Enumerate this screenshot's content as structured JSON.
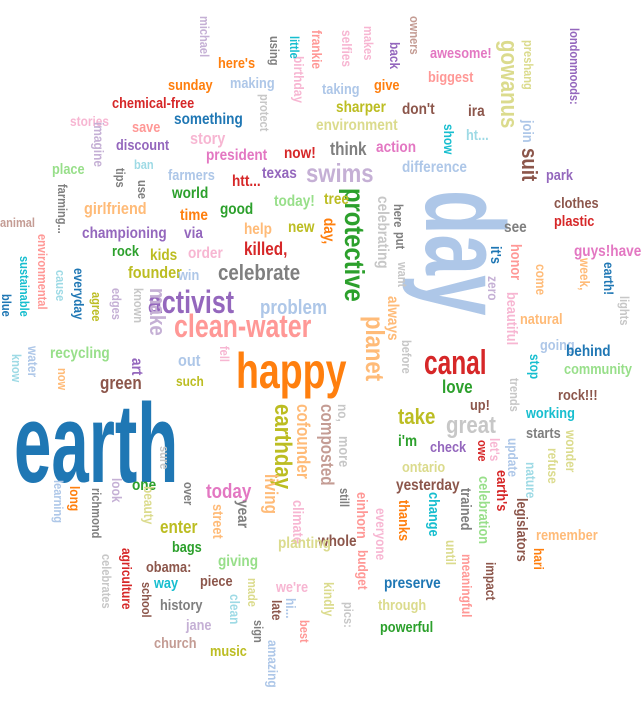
{
  "colors": {
    "blue": "#1f77b4",
    "light_blue": "#aec7e8",
    "orange": "#ff7f0e",
    "light_orange": "#ffbb78",
    "green": "#2ca02c",
    "light_green": "#98df8a",
    "red": "#d62728",
    "pink": "#ff9896",
    "purple": "#9467bd",
    "lavender": "#c5b0d5",
    "brown": "#8c564b",
    "tan": "#c49c94",
    "magenta": "#e377c2",
    "light_pink": "#f7b6d2",
    "gray": "#7f7f7f",
    "light_gray": "#c7c7c7",
    "olive": "#bcbd22",
    "khaki": "#dbdb8d",
    "teal": "#17becf",
    "light_teal": "#9edae5"
  },
  "words": [
    {
      "text": "earth",
      "color": "blue"
    },
    {
      "text": "day",
      "color": "light_blue"
    },
    {
      "text": "happy",
      "color": "orange"
    },
    {
      "text": "clean-water",
      "color": "pink"
    },
    {
      "text": "activist",
      "color": "purple"
    },
    {
      "text": "canal",
      "color": "red"
    },
    {
      "text": "protective",
      "color": "green"
    },
    {
      "text": "planet",
      "color": "light_orange"
    },
    {
      "text": "swims",
      "color": "lavender"
    },
    {
      "text": "gowanus",
      "color": "khaki"
    },
    {
      "text": "suit",
      "color": "brown"
    },
    {
      "text": "celebrate",
      "color": "gray"
    },
    {
      "text": "earthday",
      "color": "olive"
    },
    {
      "text": "great",
      "color": "light_gray"
    },
    {
      "text": "take",
      "color": "olive"
    },
    {
      "text": "make",
      "color": "lavender"
    },
    {
      "text": "problem",
      "color": "light_blue"
    },
    {
      "text": "today",
      "color": "magenta"
    },
    {
      "text": "green",
      "color": "brown"
    },
    {
      "text": "love",
      "color": "green"
    },
    {
      "text": "living",
      "color": "light_orange"
    },
    {
      "text": "cofounder",
      "color": "light_orange"
    },
    {
      "text": "composted",
      "color": "tan"
    },
    {
      "text": "always",
      "color": "light_orange"
    },
    {
      "text": "celebrating",
      "color": "light_gray"
    },
    {
      "text": "girlfriend",
      "color": "light_orange"
    },
    {
      "text": "championing",
      "color": "purple"
    },
    {
      "text": "via",
      "color": "purple"
    },
    {
      "text": "founder",
      "color": "olive"
    },
    {
      "text": "recycling",
      "color": "light_green"
    },
    {
      "text": "out",
      "color": "light_blue"
    },
    {
      "text": "art",
      "color": "purple"
    },
    {
      "text": "good",
      "color": "green"
    },
    {
      "text": "time",
      "color": "orange"
    },
    {
      "text": "kids",
      "color": "olive"
    },
    {
      "text": "rock",
      "color": "green"
    },
    {
      "text": "order",
      "color": "light_pink"
    },
    {
      "text": "win",
      "color": "light_blue"
    },
    {
      "text": "help",
      "color": "light_orange"
    },
    {
      "text": "killed,",
      "color": "red"
    },
    {
      "text": "new",
      "color": "olive"
    },
    {
      "text": "day,",
      "color": "orange"
    },
    {
      "text": "today!",
      "color": "light_green"
    },
    {
      "text": "tree",
      "color": "olive"
    },
    {
      "text": "world",
      "color": "green"
    },
    {
      "text": "farmers",
      "color": "light_blue"
    },
    {
      "text": "htt...",
      "color": "red"
    },
    {
      "text": "texas",
      "color": "purple"
    },
    {
      "text": "president",
      "color": "magenta"
    },
    {
      "text": "now!",
      "color": "red"
    },
    {
      "text": "think",
      "color": "gray"
    },
    {
      "text": "action",
      "color": "magenta"
    },
    {
      "text": "difference",
      "color": "light_blue"
    },
    {
      "text": "environment",
      "color": "khaki"
    },
    {
      "text": "sharper",
      "color": "olive"
    },
    {
      "text": "don't",
      "color": "brown"
    },
    {
      "text": "taking",
      "color": "light_blue"
    },
    {
      "text": "give",
      "color": "orange"
    },
    {
      "text": "biggest",
      "color": "pink"
    },
    {
      "text": "awesome!",
      "color": "magenta"
    },
    {
      "text": "here's",
      "color": "orange"
    },
    {
      "text": "making",
      "color": "light_blue"
    },
    {
      "text": "sunday",
      "color": "orange"
    },
    {
      "text": "chemical-free",
      "color": "red"
    },
    {
      "text": "something",
      "color": "blue"
    },
    {
      "text": "stories",
      "color": "light_pink"
    },
    {
      "text": "save",
      "color": "pink"
    },
    {
      "text": "discount",
      "color": "purple"
    },
    {
      "text": "story",
      "color": "light_pink"
    },
    {
      "text": "place",
      "color": "light_green"
    },
    {
      "text": "ban",
      "color": "light_teal"
    },
    {
      "text": "ira",
      "color": "brown"
    },
    {
      "text": "ht...",
      "color": "light_teal"
    },
    {
      "text": "show",
      "color": "teal"
    },
    {
      "text": "join",
      "color": "light_blue"
    },
    {
      "text": "park",
      "color": "purple"
    },
    {
      "text": "clothes",
      "color": "brown"
    },
    {
      "text": "plastic",
      "color": "red"
    },
    {
      "text": "see",
      "color": "gray"
    },
    {
      "text": "it's",
      "color": "blue"
    },
    {
      "text": "guys!have",
      "color": "magenta"
    },
    {
      "text": "earth!",
      "color": "blue"
    },
    {
      "text": "week,",
      "color": "light_orange"
    },
    {
      "text": "come",
      "color": "light_orange"
    },
    {
      "text": "natural",
      "color": "light_orange"
    },
    {
      "text": "beautiful",
      "color": "light_pink"
    },
    {
      "text": "honor",
      "color": "pink"
    },
    {
      "text": "zero",
      "color": "lavender"
    },
    {
      "text": "going",
      "color": "light_blue"
    },
    {
      "text": "behind",
      "color": "blue"
    },
    {
      "text": "community",
      "color": "light_green"
    },
    {
      "text": "stop",
      "color": "teal"
    },
    {
      "text": "rock!!!",
      "color": "brown"
    },
    {
      "text": "working",
      "color": "teal"
    },
    {
      "text": "starts",
      "color": "gray"
    },
    {
      "text": "up!",
      "color": "brown"
    },
    {
      "text": "i'm",
      "color": "green"
    },
    {
      "text": "check",
      "color": "purple"
    },
    {
      "text": "let's",
      "color": "light_pink"
    },
    {
      "text": "owe",
      "color": "red"
    },
    {
      "text": "update",
      "color": "light_blue"
    },
    {
      "text": "nature",
      "color": "light_teal"
    },
    {
      "text": "refuse",
      "color": "khaki"
    },
    {
      "text": "wonder",
      "color": "khaki"
    },
    {
      "text": "ontario",
      "color": "khaki"
    },
    {
      "text": "yesterday",
      "color": "brown"
    },
    {
      "text": "one",
      "color": "green"
    },
    {
      "text": "look",
      "color": "lavender"
    },
    {
      "text": "enter",
      "color": "olive"
    },
    {
      "text": "bags",
      "color": "green"
    },
    {
      "text": "beauty",
      "color": "khaki"
    },
    {
      "text": "street",
      "color": "light_orange"
    },
    {
      "text": "year",
      "color": "gray"
    },
    {
      "text": "climate",
      "color": "light_pink"
    },
    {
      "text": "whole",
      "color": "brown"
    },
    {
      "text": "thanks",
      "color": "orange"
    },
    {
      "text": "change",
      "color": "teal"
    },
    {
      "text": "trained",
      "color": "gray"
    },
    {
      "text": "celebration",
      "color": "light_green"
    },
    {
      "text": "earth's",
      "color": "red"
    },
    {
      "text": "legislators",
      "color": "brown"
    },
    {
      "text": "remember",
      "color": "light_orange"
    },
    {
      "text": "hari",
      "color": "orange"
    },
    {
      "text": "obama:",
      "color": "brown"
    },
    {
      "text": "giving",
      "color": "light_green"
    },
    {
      "text": "planting",
      "color": "khaki"
    },
    {
      "text": "preserve",
      "color": "blue"
    },
    {
      "text": "impact",
      "color": "brown"
    },
    {
      "text": "meaningful",
      "color": "pink"
    },
    {
      "text": "way",
      "color": "teal"
    },
    {
      "text": "piece",
      "color": "brown"
    },
    {
      "text": "we're",
      "color": "light_pink"
    },
    {
      "text": "history",
      "color": "gray"
    },
    {
      "text": "through",
      "color": "khaki"
    },
    {
      "text": "powerful",
      "color": "green"
    },
    {
      "text": "jane",
      "color": "lavender"
    },
    {
      "text": "church",
      "color": "tan"
    },
    {
      "text": "music",
      "color": "olive"
    },
    {
      "text": "clean",
      "color": "light_teal"
    },
    {
      "text": "made",
      "color": "khaki"
    },
    {
      "text": "sign",
      "color": "gray"
    },
    {
      "text": "amazing",
      "color": "light_blue"
    },
    {
      "text": "late",
      "color": "brown"
    },
    {
      "text": "hi...",
      "color": "light_blue"
    },
    {
      "text": "best",
      "color": "pink"
    },
    {
      "text": "kindly",
      "color": "khaki"
    },
    {
      "text": "budget",
      "color": "pink"
    },
    {
      "text": "pics:",
      "color": "light_gray"
    },
    {
      "text": "everyone",
      "color": "light_pink"
    },
    {
      "text": "einhorn",
      "color": "pink"
    },
    {
      "text": "still",
      "color": "gray"
    },
    {
      "text": "more",
      "color": "light_gray"
    },
    {
      "text": "no,",
      "color": "light_gray"
    },
    {
      "text": "over",
      "color": "gray"
    },
    {
      "text": "sure",
      "color": "light_gray"
    },
    {
      "text": "agriculture",
      "color": "red"
    },
    {
      "text": "celebrates",
      "color": "light_gray"
    },
    {
      "text": "richmond",
      "color": "gray"
    },
    {
      "text": "school",
      "color": "brown"
    },
    {
      "text": "learning",
      "color": "light_blue"
    },
    {
      "text": "long",
      "color": "orange"
    },
    {
      "text": "until",
      "color": "khaki"
    },
    {
      "text": "trends",
      "color": "light_gray"
    },
    {
      "text": "before",
      "color": "light_gray"
    },
    {
      "text": "want",
      "color": "light_gray"
    },
    {
      "text": "put",
      "color": "gray"
    },
    {
      "text": "here",
      "color": "gray"
    },
    {
      "text": "known",
      "color": "light_gray"
    },
    {
      "text": "edges",
      "color": "lavender"
    },
    {
      "text": "agree",
      "color": "olive"
    },
    {
      "text": "everyday",
      "color": "blue"
    },
    {
      "text": "cause",
      "color": "light_teal"
    },
    {
      "text": "sustainable",
      "color": "teal"
    },
    {
      "text": "environmental",
      "color": "pink"
    },
    {
      "text": "farming...",
      "color": "gray"
    },
    {
      "text": "animal",
      "color": "tan"
    },
    {
      "text": "tips",
      "color": "gray"
    },
    {
      "text": "use",
      "color": "gray"
    },
    {
      "text": "imagine",
      "color": "lavender"
    },
    {
      "text": "protect",
      "color": "light_gray"
    },
    {
      "text": "birthday",
      "color": "light_pink"
    },
    {
      "text": "little",
      "color": "teal"
    },
    {
      "text": "using",
      "color": "gray"
    },
    {
      "text": "michael",
      "color": "lavender"
    },
    {
      "text": "frankie",
      "color": "pink"
    },
    {
      "text": "selfies",
      "color": "light_pink"
    },
    {
      "text": "makes",
      "color": "light_pink"
    },
    {
      "text": "back",
      "color": "purple"
    },
    {
      "text": "owners",
      "color": "tan"
    },
    {
      "text": "preshang",
      "color": "khaki"
    },
    {
      "text": "londonmoods:",
      "color": "purple"
    },
    {
      "text": "blue",
      "color": "blue"
    },
    {
      "text": "water",
      "color": "light_blue"
    },
    {
      "text": "know",
      "color": "light_teal"
    },
    {
      "text": "such",
      "color": "olive"
    },
    {
      "text": "fell",
      "color": "light_pink"
    },
    {
      "text": "lights",
      "color": "light_gray"
    },
    {
      "text": "now",
      "color": "light_orange"
    }
  ]
}
